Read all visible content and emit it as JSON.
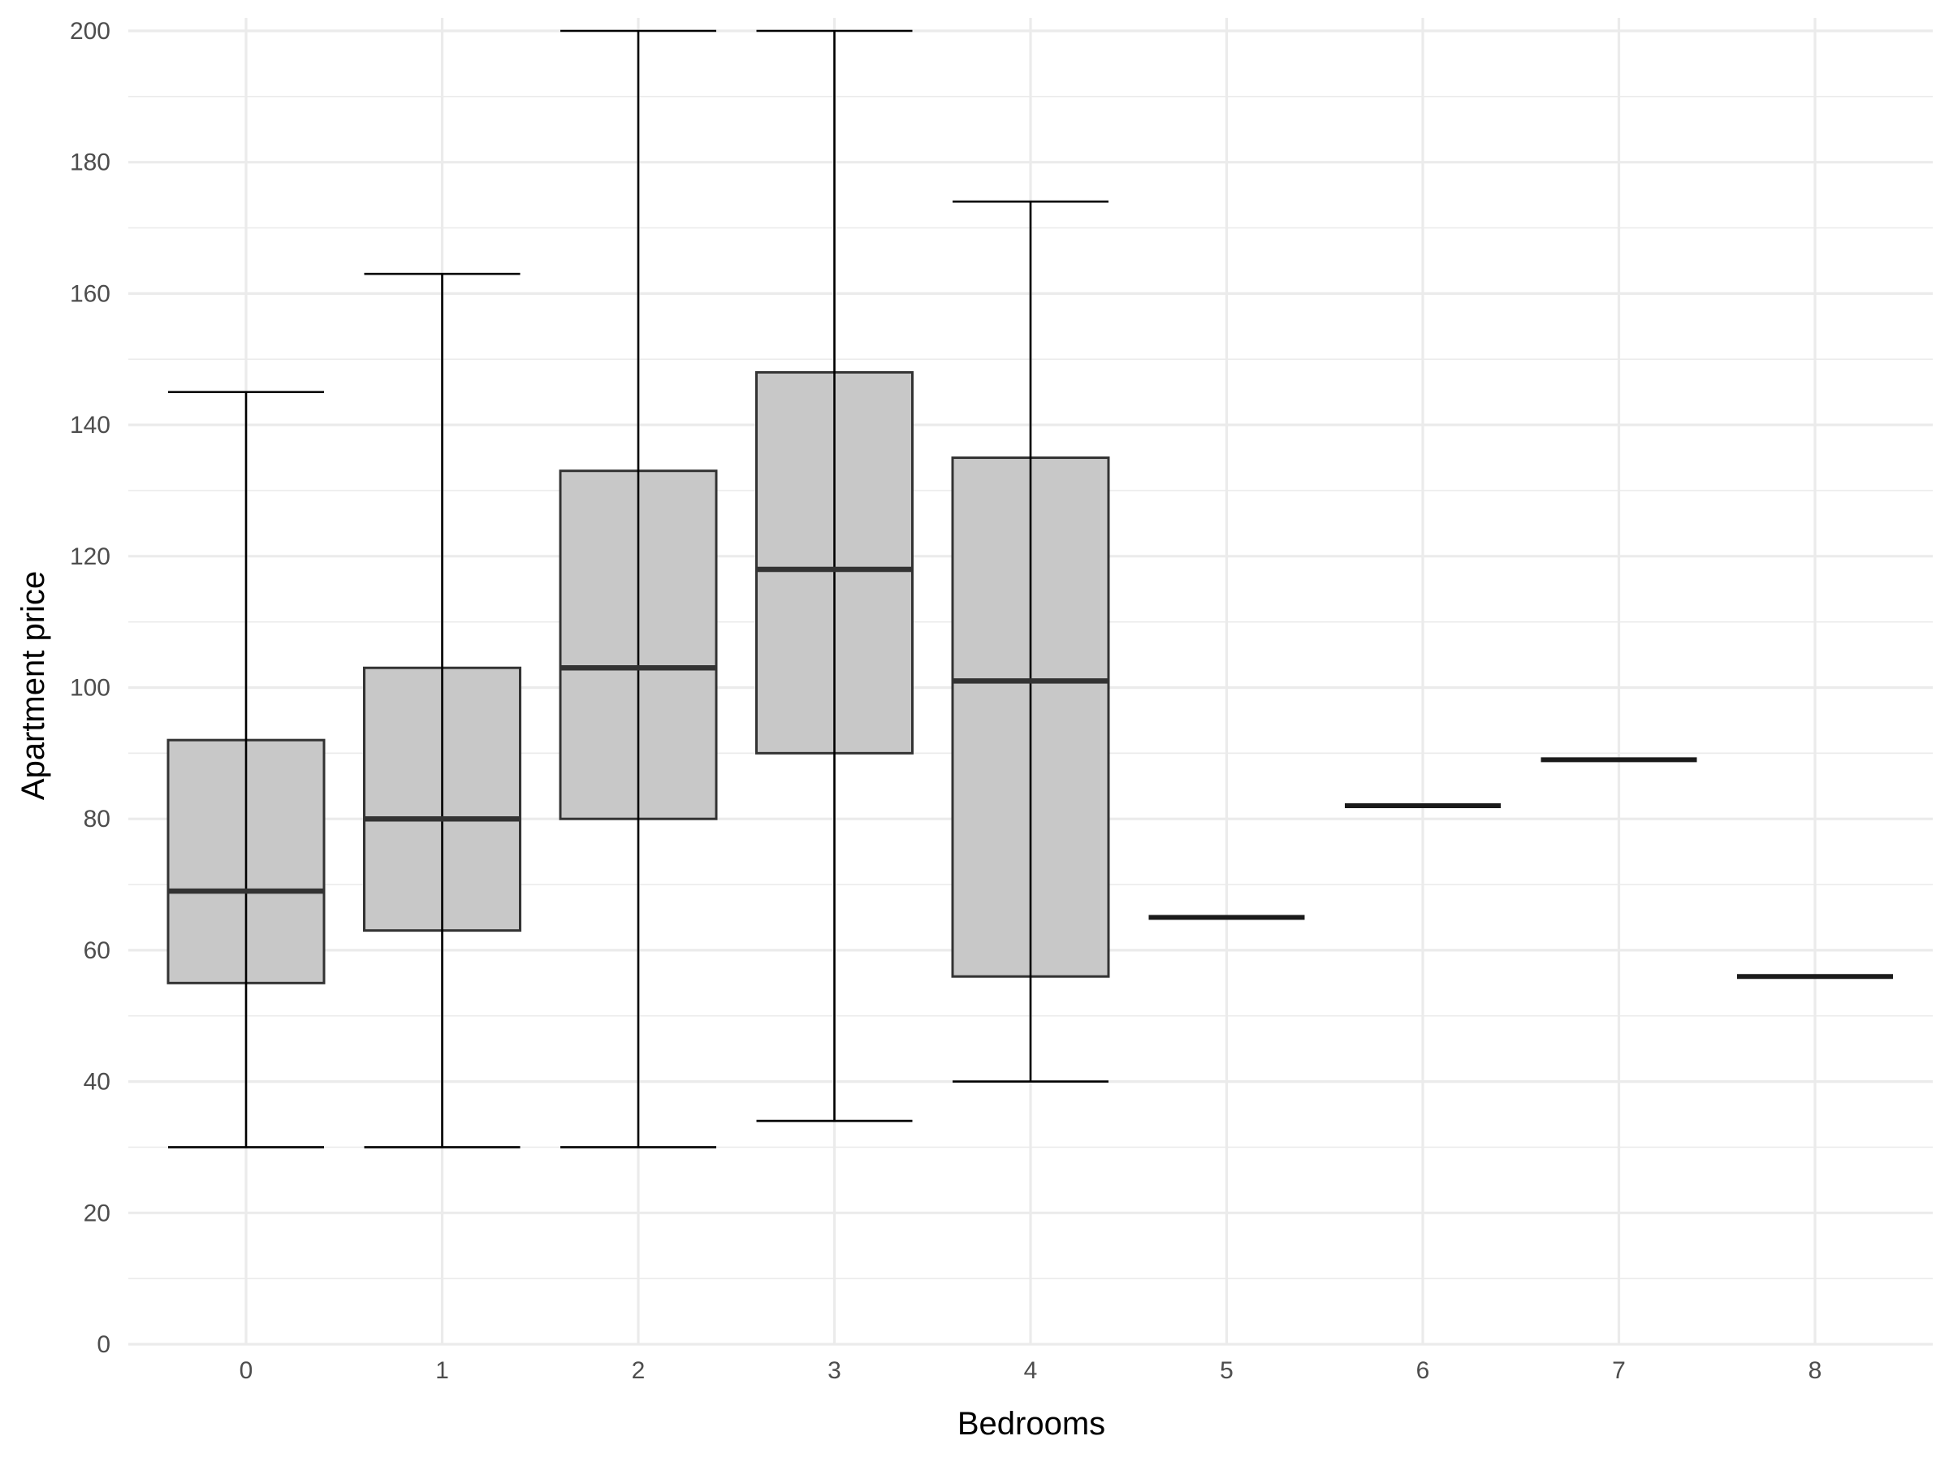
{
  "chart_data": {
    "type": "boxplot",
    "title": "",
    "xlabel": "Bedrooms",
    "ylabel": "Apartment price",
    "ylim": [
      0,
      200
    ],
    "y_ticks": [
      0,
      20,
      40,
      60,
      80,
      100,
      120,
      140,
      160,
      180,
      200
    ],
    "grid": true,
    "categories": [
      "0",
      "1",
      "2",
      "3",
      "4",
      "5",
      "6",
      "7",
      "8"
    ],
    "boxes": [
      {
        "category": "0",
        "whisker_low": 30,
        "q1": 55,
        "median": 69,
        "q3": 92,
        "whisker_high": 145
      },
      {
        "category": "1",
        "whisker_low": 30,
        "q1": 63,
        "median": 80,
        "q3": 103,
        "whisker_high": 163
      },
      {
        "category": "2",
        "whisker_low": 30,
        "q1": 80,
        "median": 103,
        "q3": 133,
        "whisker_high": 200
      },
      {
        "category": "3",
        "whisker_low": 34,
        "q1": 90,
        "median": 118,
        "q3": 148,
        "whisker_high": 200
      },
      {
        "category": "4",
        "whisker_low": 40,
        "q1": 56,
        "median": 101,
        "q3": 135,
        "whisker_high": 174
      },
      {
        "category": "5",
        "whisker_low": 65,
        "q1": 65,
        "median": 65,
        "q3": 65,
        "whisker_high": 65
      },
      {
        "category": "6",
        "whisker_low": 82,
        "q1": 82,
        "median": 82,
        "q3": 82,
        "whisker_high": 82
      },
      {
        "category": "7",
        "whisker_low": 89,
        "q1": 89,
        "median": 89,
        "q3": 89,
        "whisker_high": 89
      },
      {
        "category": "8",
        "whisker_low": 56,
        "q1": 56,
        "median": 56,
        "q3": 56,
        "whisker_high": 56
      }
    ],
    "colors": {
      "box_fill": "#c8c8c8",
      "box_stroke": "#333333",
      "grid": "#ebebeb"
    }
  }
}
